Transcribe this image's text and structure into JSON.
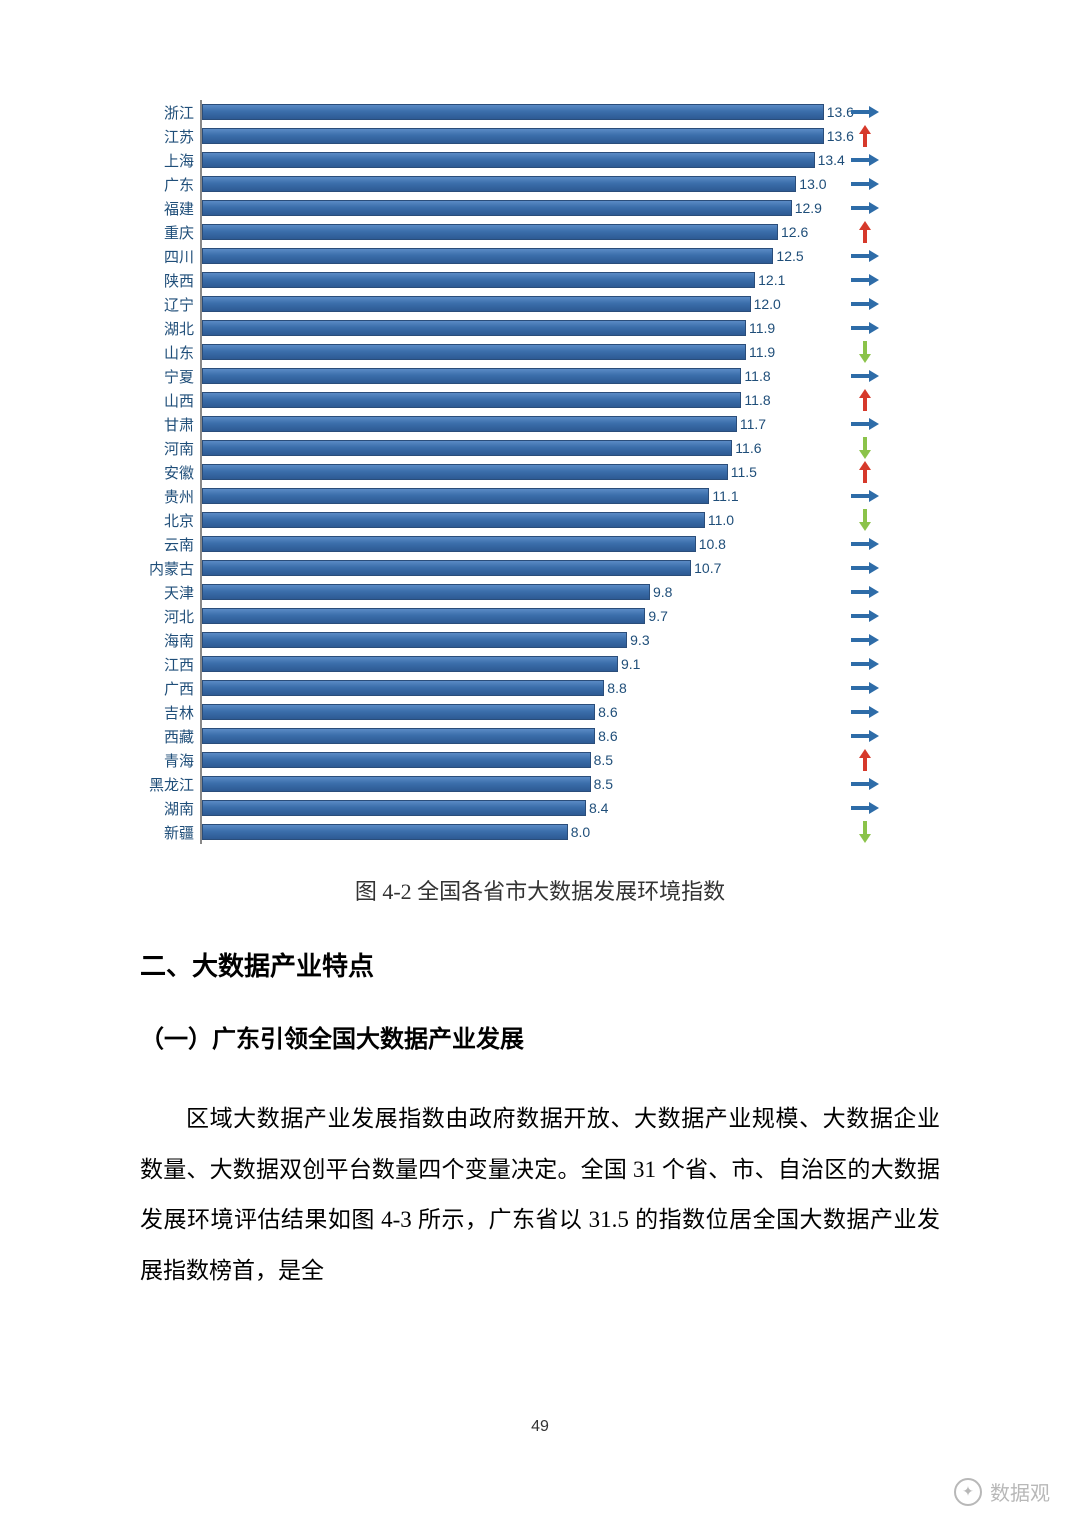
{
  "chart": {
    "type": "horizontal-bar",
    "value_max_scale": 14.0,
    "bar_fill_gradient": [
      "#5b8bc5",
      "#3b6eab",
      "#2d5a93"
    ],
    "bar_border_color": "#2a4d7a",
    "label_color": "#1f4e79",
    "value_color": "#1f4e79",
    "label_fontsize": 15,
    "value_fontsize": 14,
    "trend_colors": {
      "right": "#2e6ca8",
      "up": "#d6392b",
      "down": "#8bc34a"
    },
    "rows": [
      {
        "label": "浙江",
        "value": 13.6,
        "trend": "right"
      },
      {
        "label": "江苏",
        "value": 13.6,
        "trend": "up"
      },
      {
        "label": "上海",
        "value": 13.4,
        "trend": "right"
      },
      {
        "label": "广东",
        "value": 13.0,
        "trend": "right"
      },
      {
        "label": "福建",
        "value": 12.9,
        "trend": "right"
      },
      {
        "label": "重庆",
        "value": 12.6,
        "trend": "up"
      },
      {
        "label": "四川",
        "value": 12.5,
        "trend": "right"
      },
      {
        "label": "陕西",
        "value": 12.1,
        "trend": "right"
      },
      {
        "label": "辽宁",
        "value": 12.0,
        "trend": "right"
      },
      {
        "label": "湖北",
        "value": 11.9,
        "trend": "right"
      },
      {
        "label": "山东",
        "value": 11.9,
        "trend": "down"
      },
      {
        "label": "宁夏",
        "value": 11.8,
        "trend": "right"
      },
      {
        "label": "山西",
        "value": 11.8,
        "trend": "up"
      },
      {
        "label": "甘肃",
        "value": 11.7,
        "trend": "right"
      },
      {
        "label": "河南",
        "value": 11.6,
        "trend": "down"
      },
      {
        "label": "安徽",
        "value": 11.5,
        "trend": "up"
      },
      {
        "label": "贵州",
        "value": 11.1,
        "trend": "right"
      },
      {
        "label": "北京",
        "value": 11.0,
        "trend": "down"
      },
      {
        "label": "云南",
        "value": 10.8,
        "trend": "right"
      },
      {
        "label": "内蒙古",
        "value": 10.7,
        "trend": "right"
      },
      {
        "label": "天津",
        "value": 9.8,
        "trend": "right"
      },
      {
        "label": "河北",
        "value": 9.7,
        "trend": "right"
      },
      {
        "label": "海南",
        "value": 9.3,
        "trend": "right"
      },
      {
        "label": "江西",
        "value": 9.1,
        "trend": "right"
      },
      {
        "label": "广西",
        "value": 8.8,
        "trend": "right"
      },
      {
        "label": "吉林",
        "value": 8.6,
        "trend": "right"
      },
      {
        "label": "西藏",
        "value": 8.6,
        "trend": "right"
      },
      {
        "label": "青海",
        "value": 8.5,
        "trend": "up"
      },
      {
        "label": "黑龙江",
        "value": 8.5,
        "trend": "right"
      },
      {
        "label": "湖南",
        "value": 8.4,
        "trend": "right"
      },
      {
        "label": "新疆",
        "value": 8.0,
        "trend": "down"
      }
    ]
  },
  "caption": "图 4-2 全国各省市大数据发展环境指数",
  "heading2": "二、大数据产业特点",
  "heading3": "（一）广东引领全国大数据产业发展",
  "paragraph": "区域大数据产业发展指数由政府数据开放、大数据产业规模、大数据企业数量、大数据双创平台数量四个变量决定。全国 31 个省、市、自治区的大数据发展环境评估结果如图 4-3 所示，广东省以 31.5 的指数位居全国大数据产业发展指数榜首，是全",
  "page_number": "49",
  "watermark": "数据观"
}
